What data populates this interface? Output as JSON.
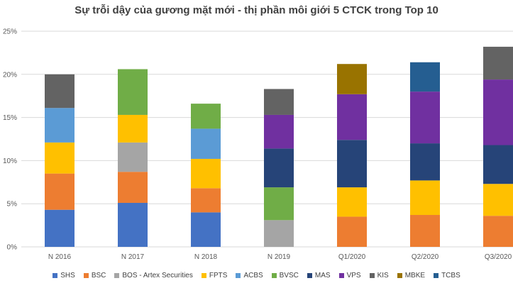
{
  "chart_data": {
    "type": "bar",
    "stacked": true,
    "title": "Sự trỗi dậy của gương mặt mới - thị phần môi giới 5 CTCK trong Top 10",
    "xlabel": "",
    "ylabel": "",
    "ylim": [
      0,
      25
    ],
    "yticks": [
      "0%",
      "5%",
      "10%",
      "15%",
      "20%",
      "25%"
    ],
    "grid": true,
    "legend_position": "bottom",
    "categories": [
      "N 2016",
      "N 2017",
      "N 2018",
      "N 2019",
      "Q1/2020",
      "Q2/2020",
      "Q3/2020"
    ],
    "series": [
      {
        "name": "SHS",
        "color": "#4472C4",
        "values": [
          4.3,
          5.1,
          4.0,
          0,
          0,
          0,
          0
        ]
      },
      {
        "name": "BSC",
        "color": "#ED7D31",
        "values": [
          4.2,
          3.6,
          2.8,
          0,
          3.5,
          3.7,
          3.6
        ]
      },
      {
        "name": "BOS - Artex Securities",
        "color": "#A5A5A5",
        "values": [
          0,
          3.4,
          0,
          3.1,
          0,
          0,
          0
        ]
      },
      {
        "name": "FPTS",
        "color": "#FFC000",
        "values": [
          3.6,
          3.2,
          3.4,
          0,
          3.4,
          4.0,
          3.7
        ]
      },
      {
        "name": "ACBS",
        "color": "#5B9BD5",
        "values": [
          4.0,
          0,
          3.5,
          0,
          0,
          0,
          0
        ]
      },
      {
        "name": "BVSC",
        "color": "#70AD47",
        "values": [
          0,
          5.3,
          2.9,
          3.8,
          0,
          0,
          0
        ]
      },
      {
        "name": "MAS",
        "color": "#264478",
        "values": [
          0,
          0,
          0,
          4.5,
          5.5,
          4.3,
          4.5
        ]
      },
      {
        "name": "VPS",
        "color": "#7030A0",
        "values": [
          0,
          0,
          0,
          3.9,
          5.3,
          6.0,
          7.6
        ]
      },
      {
        "name": "KIS",
        "color": "#636363",
        "values": [
          3.9,
          0,
          0,
          3.0,
          0,
          0,
          3.8
        ]
      },
      {
        "name": "MBKE",
        "color": "#997300",
        "values": [
          0,
          0,
          0,
          0,
          3.5,
          0,
          0
        ]
      },
      {
        "name": "TCBS",
        "color": "#255E91",
        "values": [
          0,
          0,
          0,
          0,
          0,
          3.4,
          0
        ]
      }
    ]
  }
}
